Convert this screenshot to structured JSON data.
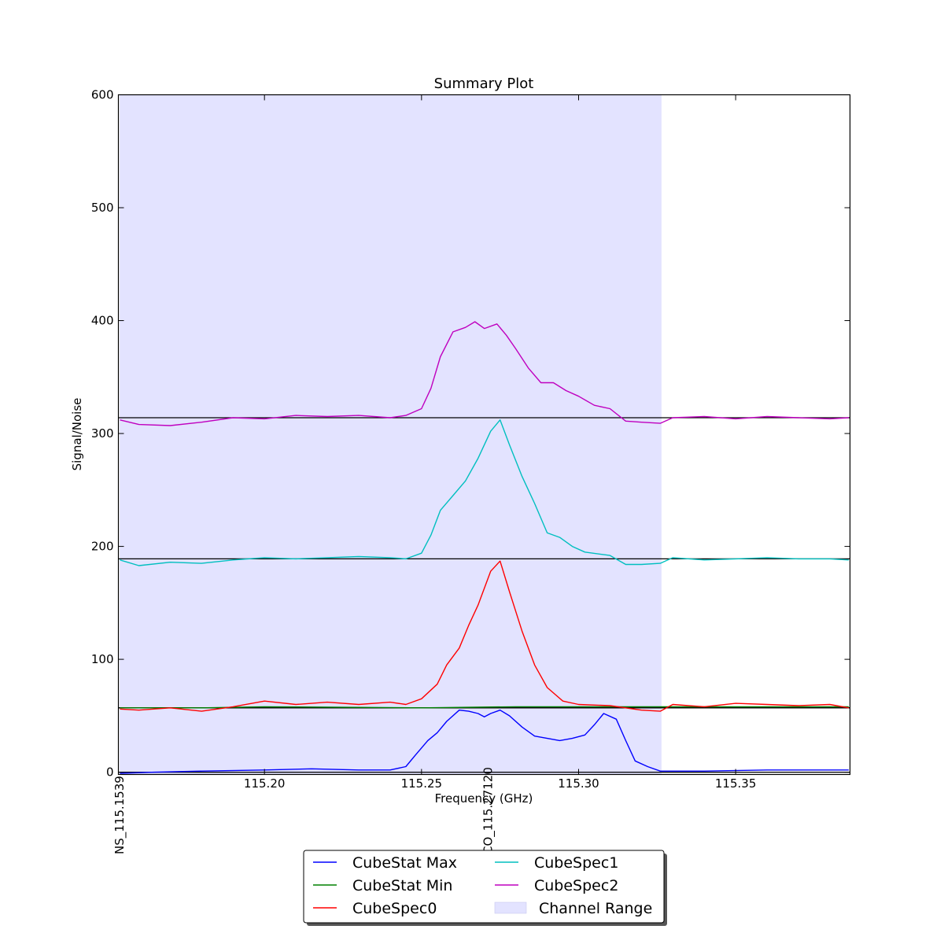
{
  "chart_data": {
    "type": "line",
    "title": "Summary Plot",
    "xlabel": "Frequency (GHz)",
    "ylabel": "Signal/Noise",
    "xlim": [
      115.1535,
      115.3864
    ],
    "ylim": [
      -2,
      600
    ],
    "grid": false,
    "x_ticks": [
      {
        "value": 115.2,
        "label": "115.20"
      },
      {
        "value": 115.25,
        "label": "115.25"
      },
      {
        "value": 115.3,
        "label": "115.30"
      },
      {
        "value": 115.35,
        "label": "115.35"
      }
    ],
    "y_ticks": [
      {
        "value": 0,
        "label": "0"
      },
      {
        "value": 100,
        "label": "100"
      },
      {
        "value": 200,
        "label": "200"
      },
      {
        "value": 300,
        "label": "300"
      },
      {
        "value": 400,
        "label": "400"
      },
      {
        "value": 500,
        "label": "500"
      },
      {
        "value": 600,
        "label": "600"
      }
    ],
    "channel_range": {
      "name": "Channel Range",
      "x_start": 115.1539,
      "x_end": 115.3264,
      "color": "#e3e3ff"
    },
    "line_markers": [
      {
        "label": "NS_115.1539",
        "x": 115.1539
      },
      {
        "label": "CO_115.27120",
        "x": 115.2712
      }
    ],
    "legend_placement": "bottom-center",
    "series": [
      {
        "name": "CubeStat Max",
        "color": "#0000ff",
        "cutoff": 0,
        "points": [
          [
            115.154,
            -1
          ],
          [
            115.165,
            0
          ],
          [
            115.18,
            1
          ],
          [
            115.2,
            2
          ],
          [
            115.215,
            3
          ],
          [
            115.23,
            2
          ],
          [
            115.24,
            2
          ],
          [
            115.245,
            5
          ],
          [
            115.248,
            15
          ],
          [
            115.252,
            28
          ],
          [
            115.255,
            35
          ],
          [
            115.258,
            45
          ],
          [
            115.262,
            55
          ],
          [
            115.265,
            54
          ],
          [
            115.268,
            52
          ],
          [
            115.27,
            49
          ],
          [
            115.272,
            52
          ],
          [
            115.275,
            55
          ],
          [
            115.278,
            50
          ],
          [
            115.282,
            40
          ],
          [
            115.286,
            32
          ],
          [
            115.29,
            30
          ],
          [
            115.294,
            28
          ],
          [
            115.298,
            30
          ],
          [
            115.302,
            33
          ],
          [
            115.305,
            42
          ],
          [
            115.308,
            52
          ],
          [
            115.312,
            47
          ],
          [
            115.315,
            28
          ],
          [
            115.318,
            10
          ],
          [
            115.322,
            5
          ],
          [
            115.326,
            1
          ],
          [
            115.34,
            1
          ],
          [
            115.36,
            2
          ],
          [
            115.386,
            2
          ]
        ]
      },
      {
        "name": "CubeStat Min",
        "color": "#008000",
        "cutoff": 57,
        "points": [
          [
            115.154,
            57
          ],
          [
            115.18,
            57
          ],
          [
            115.2,
            58
          ],
          [
            115.25,
            57
          ],
          [
            115.28,
            58
          ],
          [
            115.3,
            58
          ],
          [
            115.33,
            58
          ],
          [
            115.36,
            58
          ],
          [
            115.386,
            58
          ]
        ]
      },
      {
        "name": "CubeSpec0",
        "color": "#ff0000",
        "cutoff": 57,
        "points": [
          [
            115.154,
            56
          ],
          [
            115.16,
            55
          ],
          [
            115.17,
            57
          ],
          [
            115.18,
            54
          ],
          [
            115.19,
            58
          ],
          [
            115.2,
            63
          ],
          [
            115.21,
            60
          ],
          [
            115.22,
            62
          ],
          [
            115.23,
            60
          ],
          [
            115.24,
            62
          ],
          [
            115.245,
            60
          ],
          [
            115.25,
            65
          ],
          [
            115.255,
            78
          ],
          [
            115.258,
            95
          ],
          [
            115.262,
            110
          ],
          [
            115.265,
            130
          ],
          [
            115.268,
            148
          ],
          [
            115.272,
            178
          ],
          [
            115.275,
            187
          ],
          [
            115.278,
            160
          ],
          [
            115.282,
            125
          ],
          [
            115.286,
            95
          ],
          [
            115.29,
            75
          ],
          [
            115.295,
            63
          ],
          [
            115.3,
            60
          ],
          [
            115.31,
            59
          ],
          [
            115.32,
            55
          ],
          [
            115.326,
            54
          ],
          [
            115.33,
            60
          ],
          [
            115.34,
            58
          ],
          [
            115.35,
            61
          ],
          [
            115.36,
            60
          ],
          [
            115.37,
            59
          ],
          [
            115.38,
            60
          ],
          [
            115.386,
            57
          ]
        ]
      },
      {
        "name": "CubeSpec1",
        "color": "#00bfbf",
        "cutoff": 189,
        "points": [
          [
            115.154,
            188
          ],
          [
            115.16,
            183
          ],
          [
            115.17,
            186
          ],
          [
            115.18,
            185
          ],
          [
            115.19,
            188
          ],
          [
            115.2,
            190
          ],
          [
            115.21,
            189
          ],
          [
            115.22,
            190
          ],
          [
            115.23,
            191
          ],
          [
            115.24,
            190
          ],
          [
            115.245,
            189
          ],
          [
            115.25,
            194
          ],
          [
            115.253,
            210
          ],
          [
            115.256,
            232
          ],
          [
            115.26,
            245
          ],
          [
            115.264,
            258
          ],
          [
            115.268,
            278
          ],
          [
            115.272,
            302
          ],
          [
            115.275,
            312
          ],
          [
            115.278,
            290
          ],
          [
            115.282,
            262
          ],
          [
            115.286,
            238
          ],
          [
            115.29,
            212
          ],
          [
            115.294,
            208
          ],
          [
            115.298,
            200
          ],
          [
            115.302,
            195
          ],
          [
            115.31,
            192
          ],
          [
            115.315,
            184
          ],
          [
            115.32,
            184
          ],
          [
            115.326,
            185
          ],
          [
            115.33,
            190
          ],
          [
            115.34,
            188
          ],
          [
            115.35,
            189
          ],
          [
            115.36,
            190
          ],
          [
            115.37,
            189
          ],
          [
            115.38,
            189
          ],
          [
            115.386,
            188
          ]
        ]
      },
      {
        "name": "CubeSpec2",
        "color": "#bf00bf",
        "cutoff": 314,
        "points": [
          [
            115.154,
            312
          ],
          [
            115.16,
            308
          ],
          [
            115.17,
            307
          ],
          [
            115.18,
            310
          ],
          [
            115.19,
            314
          ],
          [
            115.2,
            313
          ],
          [
            115.21,
            316
          ],
          [
            115.22,
            315
          ],
          [
            115.23,
            316
          ],
          [
            115.24,
            314
          ],
          [
            115.245,
            316
          ],
          [
            115.25,
            322
          ],
          [
            115.253,
            340
          ],
          [
            115.256,
            368
          ],
          [
            115.26,
            390
          ],
          [
            115.264,
            394
          ],
          [
            115.267,
            399
          ],
          [
            115.27,
            393
          ],
          [
            115.274,
            397
          ],
          [
            115.277,
            387
          ],
          [
            115.28,
            375
          ],
          [
            115.284,
            358
          ],
          [
            115.288,
            345
          ],
          [
            115.292,
            345
          ],
          [
            115.296,
            338
          ],
          [
            115.3,
            333
          ],
          [
            115.305,
            325
          ],
          [
            115.31,
            322
          ],
          [
            115.315,
            311
          ],
          [
            115.32,
            310
          ],
          [
            115.326,
            309
          ],
          [
            115.33,
            314
          ],
          [
            115.34,
            315
          ],
          [
            115.35,
            313
          ],
          [
            115.36,
            315
          ],
          [
            115.37,
            314
          ],
          [
            115.38,
            313
          ],
          [
            115.386,
            314
          ]
        ]
      }
    ]
  }
}
